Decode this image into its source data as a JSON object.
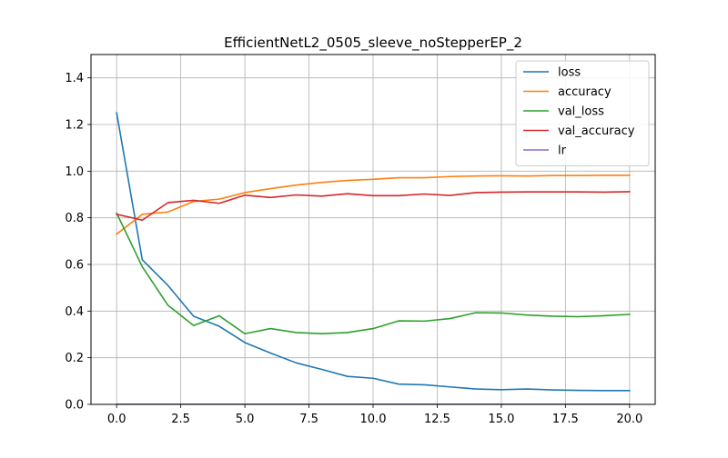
{
  "chart_data": {
    "type": "line",
    "title": "EfficientNetL2_0505_sleeve_noStepperEP_2",
    "xlabel": "",
    "ylabel": "",
    "xlim": [
      -1,
      21
    ],
    "ylim": [
      0,
      1.5
    ],
    "x_ticks": [
      0.0,
      2.5,
      5.0,
      7.5,
      10.0,
      12.5,
      15.0,
      17.5,
      20.0
    ],
    "x_tick_labels": [
      "0.0",
      "2.5",
      "5.0",
      "7.5",
      "10.0",
      "12.5",
      "15.0",
      "17.5",
      "20.0"
    ],
    "y_ticks": [
      0.0,
      0.2,
      0.4,
      0.6,
      0.8,
      1.0,
      1.2,
      1.4
    ],
    "y_tick_labels": [
      "0.0",
      "0.2",
      "0.4",
      "0.6",
      "0.8",
      "1.0",
      "1.2",
      "1.4"
    ],
    "grid": true,
    "legend_position": "top-right",
    "x": [
      0,
      1,
      2,
      3,
      4,
      5,
      6,
      7,
      8,
      9,
      10,
      11,
      12,
      13,
      14,
      15,
      16,
      17,
      18,
      19,
      20
    ],
    "series": [
      {
        "name": "loss",
        "color": "#1f77b4",
        "values": [
          1.25,
          0.62,
          0.51,
          0.378,
          0.335,
          0.265,
          0.22,
          0.178,
          0.15,
          0.12,
          0.112,
          0.087,
          0.084,
          0.075,
          0.066,
          0.063,
          0.066,
          0.062,
          0.06,
          0.059,
          0.059
        ]
      },
      {
        "name": "accuracy",
        "color": "#ff7f0e",
        "values": [
          0.73,
          0.815,
          0.825,
          0.87,
          0.88,
          0.908,
          0.925,
          0.94,
          0.952,
          0.96,
          0.965,
          0.972,
          0.972,
          0.977,
          0.979,
          0.98,
          0.979,
          0.981,
          0.981,
          0.982,
          0.982
        ]
      },
      {
        "name": "val_loss",
        "color": "#2ca02c",
        "values": [
          0.82,
          0.59,
          0.425,
          0.338,
          0.38,
          0.303,
          0.325,
          0.308,
          0.303,
          0.308,
          0.325,
          0.358,
          0.357,
          0.368,
          0.393,
          0.392,
          0.383,
          0.378,
          0.376,
          0.38,
          0.386
        ]
      },
      {
        "name": "val_accuracy",
        "color": "#d62728",
        "values": [
          0.815,
          0.79,
          0.865,
          0.875,
          0.862,
          0.897,
          0.887,
          0.898,
          0.893,
          0.903,
          0.895,
          0.895,
          0.902,
          0.896,
          0.908,
          0.91,
          0.911,
          0.911,
          0.911,
          0.91,
          0.912
        ]
      },
      {
        "name": "lr",
        "color": "#9467bd",
        "values": [
          0.001,
          0.001,
          0.001,
          0.001,
          0.001,
          0.001,
          0.001,
          0.001,
          0.001,
          0.001,
          0.001,
          0.001,
          0.001,
          0.001,
          0.001,
          0.001,
          0.001,
          0.001,
          0.001,
          0.001,
          0.001
        ]
      }
    ]
  }
}
